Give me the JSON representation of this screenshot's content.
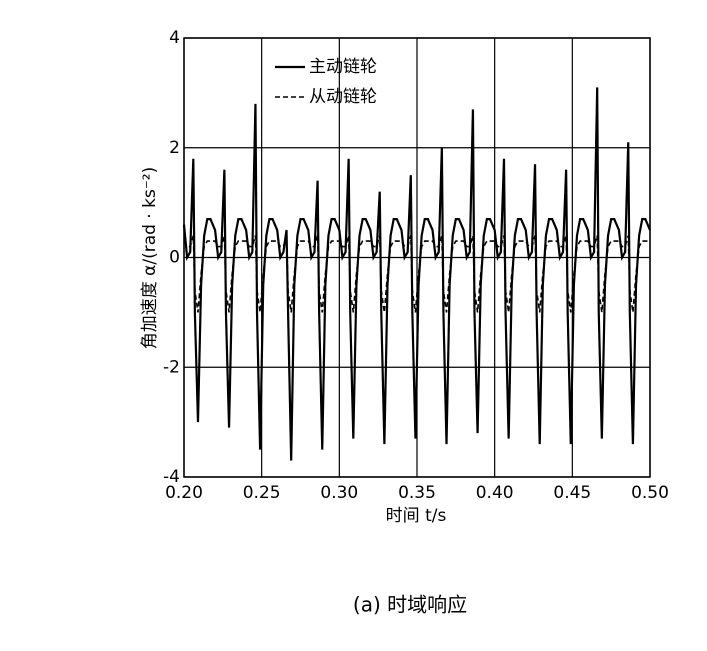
{
  "chart_data": {
    "type": "line",
    "ylabel": "角加速度  α/(rad · ks⁻²)",
    "xlabel": "时间  t/s",
    "caption": "(a) 时域响应",
    "xlim": [
      0.2,
      0.5
    ],
    "ylim": [
      -4,
      4
    ],
    "xticks": [
      {
        "value": 0.2,
        "label": "0.20"
      },
      {
        "value": 0.25,
        "label": "0.25"
      },
      {
        "value": 0.3,
        "label": "0.30"
      },
      {
        "value": 0.35,
        "label": "0.35"
      },
      {
        "value": 0.4,
        "label": "0.40"
      },
      {
        "value": 0.45,
        "label": "0.45"
      },
      {
        "value": 0.5,
        "label": "0.50"
      }
    ],
    "yticks": [
      -4,
      -2,
      0,
      2,
      4
    ],
    "grid": true,
    "legend": "upper left",
    "x": [
      0.2,
      0.202,
      0.204,
      0.206,
      0.207,
      0.209,
      0.211,
      0.213,
      0.215,
      0.217,
      0.22,
      0.222,
      0.224,
      0.226,
      0.227,
      0.229,
      0.231,
      0.233,
      0.235,
      0.237,
      0.24,
      0.242,
      0.244,
      0.246,
      0.247,
      0.249,
      0.251,
      0.253,
      0.255,
      0.257,
      0.26,
      0.262,
      0.264,
      0.266,
      0.267,
      0.269,
      0.271,
      0.273,
      0.275,
      0.277,
      0.28,
      0.282,
      0.284,
      0.286,
      0.287,
      0.289,
      0.291,
      0.293,
      0.295,
      0.297,
      0.3,
      0.302,
      0.304,
      0.306,
      0.307,
      0.309,
      0.311,
      0.313,
      0.315,
      0.317,
      0.32,
      0.322,
      0.324,
      0.326,
      0.327,
      0.329,
      0.331,
      0.333,
      0.335,
      0.337,
      0.34,
      0.342,
      0.344,
      0.346,
      0.347,
      0.349,
      0.351,
      0.353,
      0.355,
      0.357,
      0.36,
      0.362,
      0.364,
      0.366,
      0.367,
      0.369,
      0.371,
      0.373,
      0.375,
      0.377,
      0.38,
      0.382,
      0.384,
      0.386,
      0.387,
      0.389,
      0.391,
      0.393,
      0.395,
      0.397,
      0.4,
      0.402,
      0.404,
      0.406,
      0.407,
      0.409,
      0.411,
      0.413,
      0.415,
      0.417,
      0.42,
      0.422,
      0.424,
      0.426,
      0.427,
      0.429,
      0.431,
      0.433,
      0.435,
      0.437,
      0.44,
      0.442,
      0.444,
      0.446,
      0.447,
      0.449,
      0.451,
      0.453,
      0.455,
      0.457,
      0.46,
      0.462,
      0.464,
      0.466,
      0.467,
      0.469,
      0.471,
      0.473,
      0.475,
      0.477,
      0.48,
      0.482,
      0.484,
      0.486,
      0.487,
      0.489,
      0.491,
      0.493,
      0.495,
      0.497,
      0.5
    ],
    "series": [
      {
        "name": "主动链轮",
        "color": "#000000",
        "dash": false,
        "values": [
          0.6,
          0.0,
          0.1,
          1.8,
          -1.0,
          -3.0,
          -0.5,
          0.4,
          0.7,
          0.7,
          0.5,
          0.0,
          0.1,
          1.6,
          -1.0,
          -3.1,
          -0.5,
          0.4,
          0.7,
          0.7,
          0.5,
          0.0,
          0.1,
          2.8,
          -1.0,
          -3.5,
          -0.5,
          0.4,
          0.7,
          0.7,
          0.5,
          0.0,
          0.1,
          0.5,
          -1.0,
          -3.7,
          -0.5,
          0.4,
          0.7,
          0.7,
          0.5,
          0.0,
          0.1,
          1.4,
          -1.0,
          -3.5,
          -0.5,
          0.4,
          0.7,
          0.7,
          0.5,
          0.0,
          0.1,
          1.8,
          -1.0,
          -3.3,
          -0.5,
          0.4,
          0.7,
          0.7,
          0.5,
          0.0,
          0.1,
          1.2,
          -1.0,
          -3.4,
          -0.5,
          0.4,
          0.7,
          0.7,
          0.5,
          0.0,
          0.1,
          1.5,
          -1.0,
          -3.3,
          -0.5,
          0.4,
          0.7,
          0.7,
          0.5,
          0.0,
          0.1,
          2.0,
          -1.0,
          -3.4,
          -0.5,
          0.4,
          0.7,
          0.7,
          0.5,
          0.0,
          0.1,
          2.7,
          -1.0,
          -3.2,
          -0.5,
          0.4,
          0.7,
          0.7,
          0.5,
          0.0,
          0.1,
          1.8,
          -1.0,
          -3.3,
          -0.5,
          0.4,
          0.7,
          0.7,
          0.5,
          0.0,
          0.1,
          1.7,
          -1.0,
          -3.4,
          -0.5,
          0.4,
          0.7,
          0.7,
          0.5,
          0.0,
          0.1,
          1.6,
          -1.0,
          -3.4,
          -0.5,
          0.4,
          0.7,
          0.7,
          0.5,
          0.0,
          0.1,
          3.1,
          -1.0,
          -3.3,
          -0.5,
          0.4,
          0.7,
          0.7,
          0.5,
          0.0,
          0.1,
          2.1,
          -1.0,
          -3.4,
          -0.5,
          0.4,
          0.7,
          0.7,
          0.5
        ]
      },
      {
        "name": "从动链轮",
        "color": "#000000",
        "dash": true,
        "values": [
          0.3,
          0.2,
          0.2,
          0.4,
          -0.6,
          -1.0,
          -0.3,
          0.2,
          0.3,
          0.3,
          0.3,
          0.2,
          0.2,
          0.4,
          -0.6,
          -1.0,
          -0.3,
          0.2,
          0.3,
          0.3,
          0.3,
          0.2,
          0.2,
          0.4,
          -0.6,
          -1.0,
          -0.3,
          0.2,
          0.3,
          0.3,
          0.3,
          0.2,
          0.2,
          0.4,
          -0.6,
          -1.0,
          -0.3,
          0.2,
          0.3,
          0.3,
          0.3,
          0.2,
          0.2,
          0.4,
          -0.6,
          -1.0,
          -0.3,
          0.2,
          0.3,
          0.3,
          0.3,
          0.2,
          0.2,
          0.4,
          -0.6,
          -1.0,
          -0.3,
          0.2,
          0.3,
          0.3,
          0.3,
          0.2,
          0.2,
          0.4,
          -0.6,
          -1.0,
          -0.3,
          0.2,
          0.3,
          0.3,
          0.3,
          0.2,
          0.2,
          0.4,
          -0.6,
          -1.0,
          -0.3,
          0.2,
          0.3,
          0.3,
          0.3,
          0.2,
          0.2,
          0.4,
          -0.6,
          -1.0,
          -0.3,
          0.2,
          0.3,
          0.3,
          0.3,
          0.2,
          0.2,
          0.4,
          -0.6,
          -1.0,
          -0.3,
          0.2,
          0.3,
          0.3,
          0.3,
          0.2,
          0.2,
          0.4,
          -0.6,
          -1.0,
          -0.3,
          0.2,
          0.3,
          0.3,
          0.3,
          0.2,
          0.2,
          0.4,
          -0.6,
          -1.0,
          -0.3,
          0.2,
          0.3,
          0.3,
          0.3,
          0.2,
          0.2,
          0.4,
          -0.6,
          -1.0,
          -0.3,
          0.2,
          0.3,
          0.3,
          0.3,
          0.2,
          0.2,
          0.4,
          -0.6,
          -1.0,
          -0.3,
          0.2,
          0.3,
          0.3,
          0.3,
          0.2,
          0.2,
          0.4,
          -0.6,
          -1.0,
          -0.3,
          0.2,
          0.3,
          0.3,
          0.3
        ]
      }
    ]
  }
}
